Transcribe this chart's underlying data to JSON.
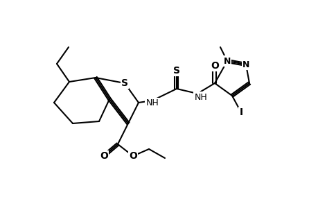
{
  "figsize": [
    4.6,
    3.0
  ],
  "dpi": 100,
  "bg_color": "#ffffff",
  "line_color": "#000000",
  "lw": 1.5,
  "font_size": 9,
  "bold_atoms": [
    "S",
    "N",
    "O",
    "I",
    "H"
  ]
}
